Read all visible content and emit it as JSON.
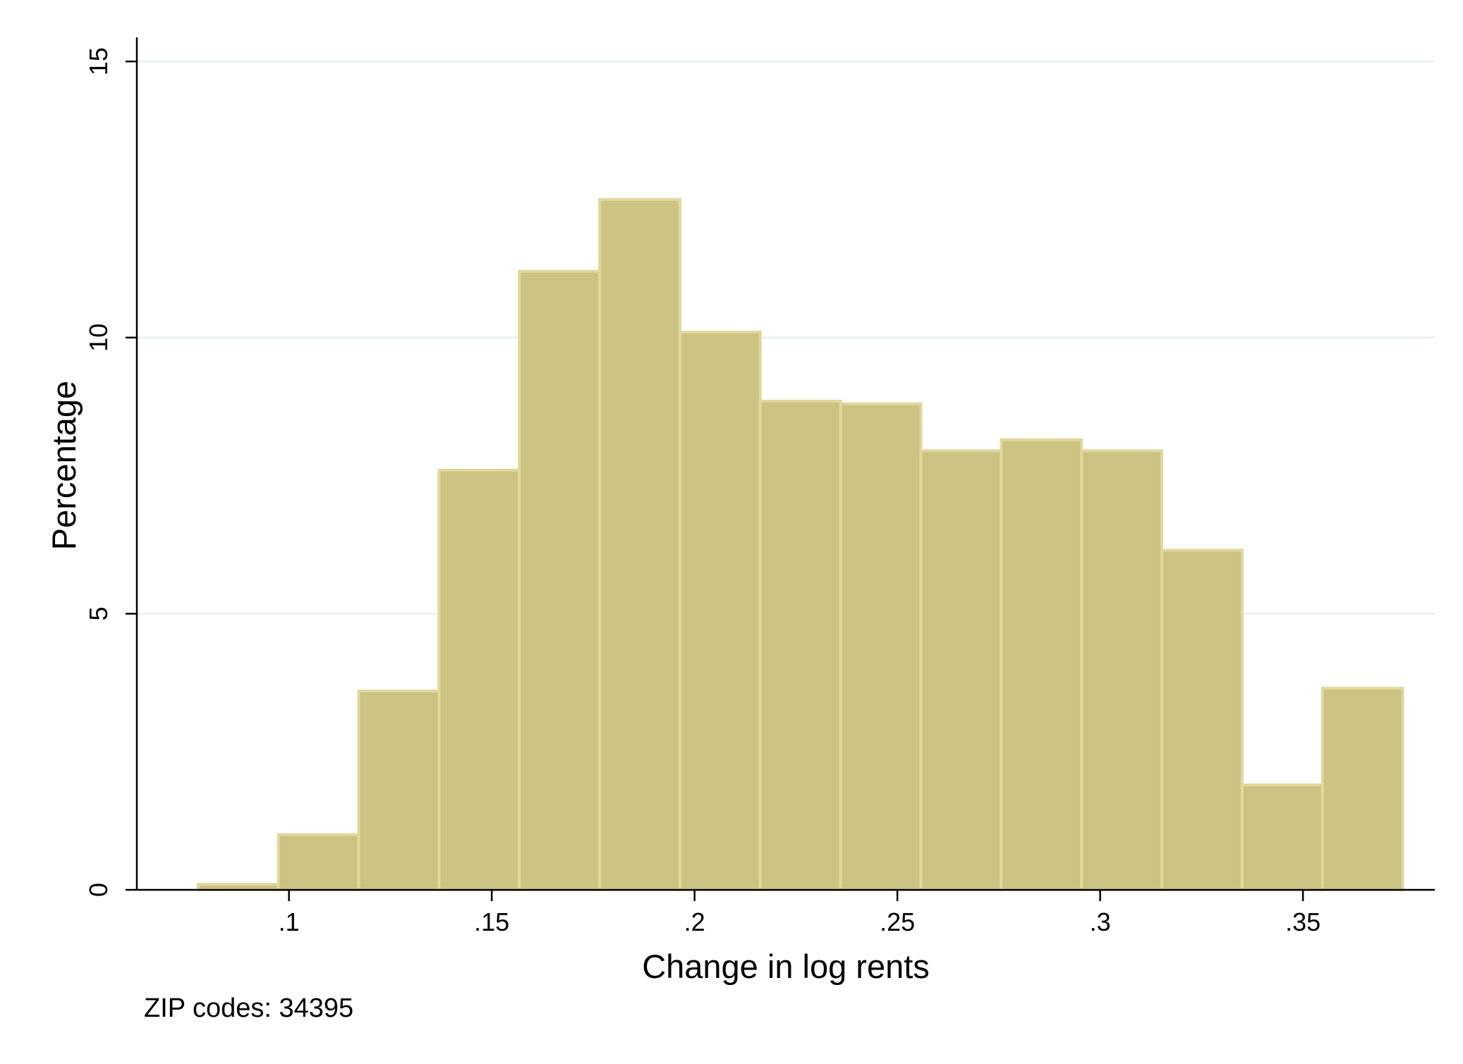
{
  "chart_data": {
    "type": "bar",
    "title": "",
    "xlabel": "Change in log rents",
    "ylabel": "Percentage",
    "note": "ZIP codes: 34395",
    "xlim": [
      0.0625,
      0.3825
    ],
    "ylim": [
      0,
      15.5
    ],
    "x_ticks": [
      0.1,
      0.15,
      0.2,
      0.25,
      0.3,
      0.35
    ],
    "x_tick_labels": [
      ".1",
      ".15",
      ".2",
      ".25",
      ".3",
      ".35"
    ],
    "y_ticks": [
      0,
      5,
      10,
      15
    ],
    "y_tick_labels": [
      "0",
      "5",
      "10",
      "15"
    ],
    "grid": true,
    "colors": {
      "bar_fill": "#ccc282",
      "bar_edge": "#e0d89c",
      "grid": "#eaf2f3",
      "axis": "#000000"
    },
    "bin_width": 0.0198,
    "bins": [
      {
        "start": 0.0776,
        "value": 0.1
      },
      {
        "start": 0.0974,
        "value": 1.0
      },
      {
        "start": 0.1172,
        "value": 3.6
      },
      {
        "start": 0.137,
        "value": 7.6
      },
      {
        "start": 0.1568,
        "value": 11.2
      },
      {
        "start": 0.1766,
        "value": 12.5
      },
      {
        "start": 0.1964,
        "value": 10.1
      },
      {
        "start": 0.2162,
        "value": 8.85
      },
      {
        "start": 0.236,
        "value": 8.8
      },
      {
        "start": 0.2558,
        "value": 7.95
      },
      {
        "start": 0.2756,
        "value": 8.15
      },
      {
        "start": 0.2954,
        "value": 7.95
      },
      {
        "start": 0.3152,
        "value": 6.15
      },
      {
        "start": 0.335,
        "value": 1.9
      },
      {
        "start": 0.3548,
        "value": 3.65
      }
    ]
  }
}
